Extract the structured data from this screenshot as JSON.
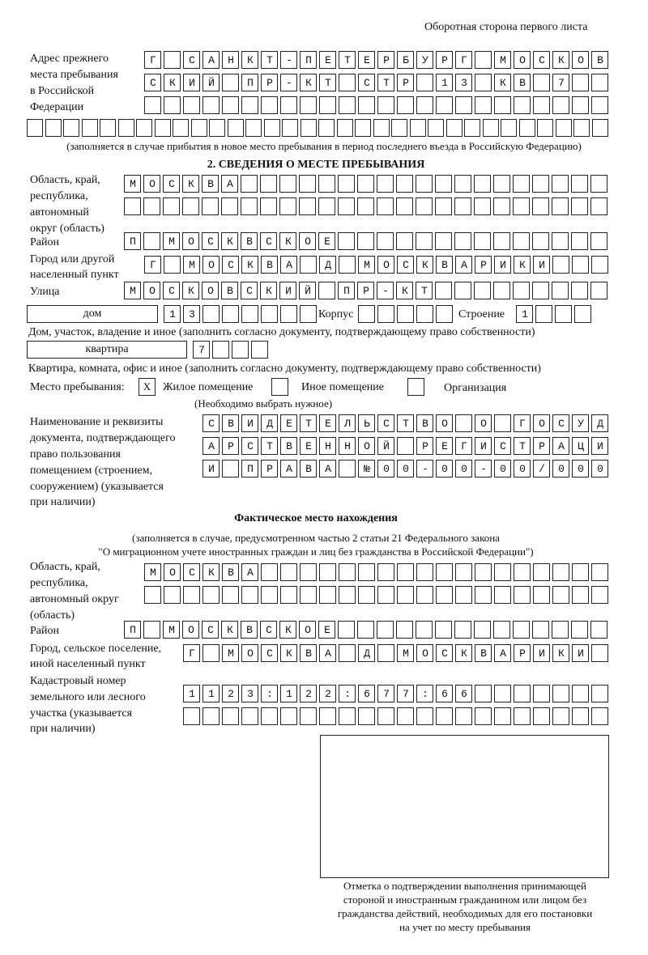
{
  "header": {
    "page_side": "Оборотная сторона первого листа"
  },
  "previous_address": {
    "label": [
      "Адрес прежнего",
      "места пребывания",
      "в Российской",
      "Федерации"
    ],
    "rows": [
      "Г САНКТ-ПЕТЕРБУРГ МОСКОВ",
      "СКИЙ ПР-КТ СТР 13 КВ 7  ",
      "                        ",
      "                                "
    ],
    "note": "(заполняется в случае прибытия в новое место пребывания в период последнего въезда в Российскую Федерацию)"
  },
  "section2": {
    "title": "2. СВЕДЕНИЯ О МЕСТЕ ПРЕБЫВАНИЯ",
    "region_label": [
      "Область, край,",
      "республика,",
      "автономный",
      "округ (область)"
    ],
    "region_rows": [
      "МОСКВА                   ",
      "                         "
    ],
    "district_label": "Район",
    "district_row": "П МОСКВСКОЕ              ",
    "city_label": [
      "Город или другой",
      "населенный пункт"
    ],
    "city_row": "Г МОСКВА Д МОСКВАРИКИ   ",
    "street_label": "Улица",
    "street_row": "МОСКОВСКИЙ ПР-КТ         ",
    "house_type": "дом",
    "house_row": "13      ",
    "korpus_label": "Корпус",
    "korpus_row": "     ",
    "building_label": "Строение",
    "building_row": "1   ",
    "house_note": "Дом, участок, владение и иное (заполнить согласно документу, подтверждающему право собственности)",
    "apt_type": "квартира",
    "apt_row": "7   ",
    "apt_note": "Квартира, комната, офис и иное (заполнить согласно документу, подтверждающему право собственности)",
    "stay_place_label": "Место пребывания:",
    "stay_options": [
      {
        "mark": "X",
        "label": "Жилое помещение"
      },
      {
        "mark": "",
        "label": "Иное помещение"
      },
      {
        "mark": "",
        "label": "Организация"
      }
    ],
    "stay_note": "(Необходимо выбрать нужное)",
    "doc_label": [
      "Наименование и реквизиты",
      "документа, подтверждающего",
      "право пользования",
      "помещением (строением,",
      "сооружением) (указывается",
      "при наличии)"
    ],
    "doc_rows": [
      "СВИДЕТЕЛЬСТВО О ГОСУД",
      "АРСТВЕННОЙ РЕГИСТРАЦИ",
      "И ПРАВА №00-00-00/000"
    ]
  },
  "actual": {
    "title": "Фактическое место нахождения",
    "note": [
      "(заполняется в случае, предусмотренном частью 2 статьи 21 Федерального закона",
      "\"О миграционном учете иностранных граждан и лиц без гражданства в Российской Федерации\")"
    ],
    "region_label": [
      "Область, край,",
      "республика,",
      "автономный округ",
      "(область)"
    ],
    "region_rows": [
      "МОСКВА                  ",
      "                        "
    ],
    "district_label": "Район",
    "district_row": "П МОСКВСКОЕ              ",
    "city_label": [
      "Город, сельское поселение,",
      "иной населенный пункт"
    ],
    "city_row": "Г МОСКВА Д МОСКВАРИКИ ",
    "cadastre_label": [
      "Кадастровый номер",
      "земельного или лесного",
      "участка (указывается",
      "при наличии)"
    ],
    "cadastre_rows": [
      "1123:122:677:66       ",
      "                      "
    ]
  },
  "stamp": {
    "caption": [
      "Отметка о подтверждении выполнения принимающей",
      "стороной и иностранным гражданином или лицом без",
      "гражданства действий, необходимых для его постановки",
      "на учет по месту пребывания"
    ]
  }
}
